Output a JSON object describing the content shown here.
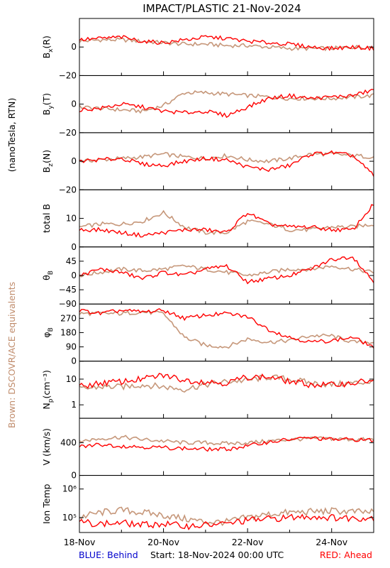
{
  "title": "IMPACT/PLASTIC   21-Nov-2024",
  "side_labels": {
    "units": "(nanoTesla, RTN)",
    "equivalents": "Brown: DSCOVR/ACE equivalents"
  },
  "footer": {
    "behind": "BLUE: Behind",
    "start": "Start: 18-Nov-2024 00:00 UTC",
    "ahead": "RED: Ahead"
  },
  "colors": {
    "ahead": "#ff0000",
    "ace": "#c08c6c",
    "behind": "#0000cc",
    "frame": "#000000"
  },
  "chart_data": {
    "type": "line",
    "x_axis": {
      "range": [
        "18-Nov-2024",
        "25-Nov-2024"
      ],
      "tick_labels": [
        "18-Nov",
        "20-Nov",
        "22-Nov",
        "24-Nov"
      ]
    },
    "series_legend": {
      "red": "Ahead",
      "brown": "DSCOVR/ACE equivalents"
    },
    "panels": [
      {
        "key": "bx",
        "ylabel": "B",
        "ysub": "x",
        "ysuffix": "(R)",
        "ylim": [
          -20,
          20
        ],
        "yticks": [
          {
            "v": 0,
            "label": "0"
          },
          {
            "v": -20,
            "label": "−20"
          }
        ],
        "ace": [
          4,
          5,
          5,
          4,
          3,
          2,
          2,
          1,
          1,
          0,
          -1,
          -1,
          -1,
          0,
          0
        ],
        "ahead": [
          5,
          6,
          7,
          4,
          3,
          5,
          7,
          6,
          4,
          3,
          2,
          0,
          -1,
          0,
          -1
        ]
      },
      {
        "key": "by",
        "ylabel": "B",
        "ysub": "y",
        "ysuffix": "(T)",
        "ylim": [
          -20,
          20
        ],
        "yticks": [
          {
            "v": 0,
            "label": "0"
          },
          {
            "v": -20,
            "label": "−20"
          }
        ],
        "ace": [
          -2,
          -3,
          -4,
          -5,
          -1,
          8,
          8,
          7,
          6,
          5,
          4,
          4,
          4,
          5,
          6
        ],
        "ahead": [
          -4,
          -3,
          0,
          -2,
          -5,
          -6,
          -5,
          -8,
          -2,
          4,
          6,
          4,
          5,
          6,
          10
        ]
      },
      {
        "key": "bz",
        "ylabel": "B",
        "ysub": "z",
        "ysuffix": "(N)",
        "ylim": [
          -20,
          20
        ],
        "yticks": [
          {
            "v": 0,
            "label": "0"
          },
          {
            "v": -20,
            "label": "−20"
          }
        ],
        "ace": [
          0,
          1,
          2,
          3,
          5,
          3,
          2,
          4,
          1,
          0,
          2,
          5,
          5,
          4,
          3
        ],
        "ahead": [
          0,
          1,
          2,
          -2,
          -3,
          0,
          2,
          1,
          -4,
          -6,
          -3,
          5,
          6,
          4,
          -10
        ]
      },
      {
        "key": "btot",
        "ylabel": "total B",
        "ysub": "",
        "ysuffix": "",
        "ylim": [
          0,
          20
        ],
        "yticks": [
          {
            "v": 10,
            "label": "10"
          },
          {
            "v": 0,
            "label": "0"
          }
        ],
        "ace": [
          7,
          8,
          8,
          9,
          12,
          7,
          5,
          5,
          9,
          8,
          6,
          6,
          7,
          7,
          8
        ],
        "ahead": [
          6,
          6,
          5,
          4,
          5,
          6,
          6,
          5,
          12,
          8,
          7,
          7,
          6,
          6,
          15
        ]
      },
      {
        "key": "theta",
        "ylabel": "θ",
        "ysub": "B",
        "ysuffix": "",
        "ylim": [
          -90,
          90
        ],
        "yticks": [
          {
            "v": 45,
            "label": "45"
          },
          {
            "v": 0,
            "label": "0"
          },
          {
            "v": -45,
            "label": "−45"
          },
          {
            "v": -90,
            "label": "−90"
          }
        ],
        "ace": [
          0,
          10,
          20,
          15,
          20,
          30,
          20,
          10,
          0,
          10,
          20,
          20,
          30,
          20,
          10
        ],
        "ahead": [
          0,
          20,
          10,
          -10,
          10,
          0,
          20,
          30,
          -20,
          -10,
          0,
          20,
          50,
          60,
          -20
        ]
      },
      {
        "key": "phi",
        "ylabel": "φ",
        "ysub": "B",
        "ysuffix": "",
        "ylim": [
          0,
          360
        ],
        "yticks": [
          {
            "v": 270,
            "label": "270"
          },
          {
            "v": 180,
            "label": "180"
          },
          {
            "v": 90,
            "label": "90"
          },
          {
            "v": 0,
            "label": "0"
          }
        ],
        "ace": [
          300,
          300,
          300,
          310,
          300,
          150,
          100,
          90,
          140,
          120,
          130,
          160,
          160,
          120,
          120
        ],
        "ahead": [
          320,
          300,
          320,
          310,
          320,
          270,
          290,
          300,
          280,
          200,
          150,
          120,
          130,
          150,
          90
        ]
      },
      {
        "key": "np",
        "ylabel": "N",
        "ysub": "p",
        "ysuffix": "(cm⁻³)",
        "log": true,
        "ylim": [
          0.3,
          50
        ],
        "yticks": [
          {
            "v": 10,
            "label": "10"
          },
          {
            "v": 1,
            "label": "1"
          }
        ],
        "ace": [
          4,
          5,
          5,
          6,
          5,
          4,
          6,
          8,
          9,
          12,
          10,
          7,
          6,
          7,
          8
        ],
        "ahead": [
          5,
          7,
          8,
          10,
          14,
          9,
          8,
          7,
          12,
          12,
          8,
          6,
          6,
          7,
          9
        ]
      },
      {
        "key": "v",
        "ylabel": "V (km/s)",
        "ysub": "",
        "ysuffix": "",
        "ylim": [
          0,
          700
        ],
        "yticks": [
          {
            "v": 400,
            "label": "400"
          },
          {
            "v": 0,
            "label": "0"
          }
        ],
        "ace": [
          420,
          450,
          470,
          440,
          420,
          400,
          400,
          390,
          400,
          420,
          440,
          450,
          450,
          440,
          440
        ],
        "ahead": [
          350,
          380,
          360,
          350,
          340,
          330,
          320,
          320,
          360,
          410,
          440,
          460,
          440,
          440,
          430
        ]
      },
      {
        "key": "temp",
        "ylabel": "Ion Temp",
        "ysub": "",
        "ysuffix": "",
        "log": true,
        "ylim": [
          30000,
          3000000
        ],
        "yticks": [
          {
            "v": 1000000,
            "label": "10⁶"
          },
          {
            "v": 100000,
            "label": "10⁵"
          }
        ],
        "ace": [
          100000,
          150000,
          180000,
          150000,
          120000,
          90000,
          70000,
          70000,
          100000,
          130000,
          150000,
          160000,
          170000,
          160000,
          150000
        ],
        "ahead": [
          70000,
          60000,
          65000,
          55000,
          60000,
          50000,
          55000,
          60000,
          80000,
          90000,
          100000,
          110000,
          100000,
          95000,
          100000
        ]
      }
    ]
  }
}
